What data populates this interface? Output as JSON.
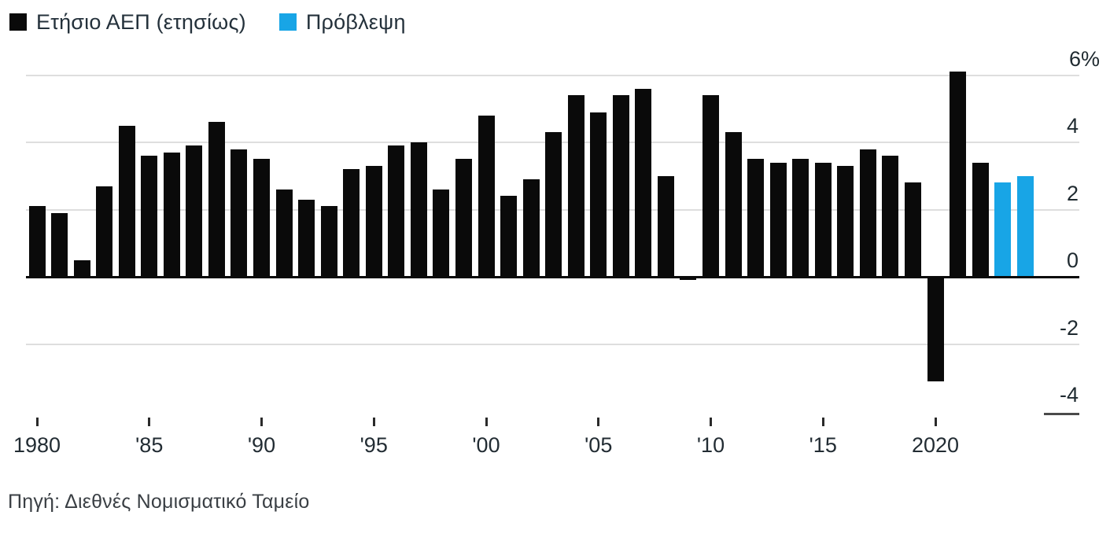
{
  "legend": {
    "series_label": "Ετήσιο ΑΕΠ (ετησίως)",
    "forecast_label": "Πρόβλεψη"
  },
  "source_note": "Πηγή: Διεθνές Νομισματικό Ταμείο",
  "colors": {
    "actual_bar": "#0a0a0a",
    "forecast_bar": "#18a5e6",
    "gridline": "#dedede",
    "zero_line": "#0a0a0a",
    "axis_stub": "#4a4a4a",
    "tick": "#2a2a2a"
  },
  "chart_data": {
    "type": "bar",
    "title": "",
    "xlabel": "",
    "ylabel": "",
    "y_unit": "%",
    "ylim": [
      -4,
      6
    ],
    "grid": "horizontal",
    "legend_position": "top-left",
    "x": [
      1980,
      1981,
      1982,
      1983,
      1984,
      1985,
      1986,
      1987,
      1988,
      1989,
      1990,
      1991,
      1992,
      1993,
      1994,
      1995,
      1996,
      1997,
      1998,
      1999,
      2000,
      2001,
      2002,
      2003,
      2004,
      2005,
      2006,
      2007,
      2008,
      2009,
      2010,
      2011,
      2012,
      2013,
      2014,
      2015,
      2016,
      2017,
      2018,
      2019,
      2020,
      2021,
      2022,
      2023,
      2024
    ],
    "values": [
      2.1,
      1.9,
      0.5,
      2.7,
      4.5,
      3.6,
      3.7,
      3.9,
      4.6,
      3.8,
      3.5,
      2.6,
      2.3,
      2.1,
      3.2,
      3.3,
      3.9,
      4.0,
      2.6,
      3.5,
      4.8,
      2.4,
      2.9,
      4.3,
      5.4,
      4.9,
      5.4,
      5.6,
      3.0,
      -0.1,
      5.4,
      4.3,
      3.5,
      3.4,
      3.5,
      3.4,
      3.3,
      3.8,
      3.6,
      2.8,
      -3.1,
      6.1,
      3.4,
      2.8,
      3.0
    ],
    "forecast_years": [
      2023,
      2024
    ],
    "series": [
      {
        "name": "Ετήσιο ΑΕΠ (ετησίως)",
        "years": "1980-2022",
        "style": "black"
      },
      {
        "name": "Πρόβλεψη",
        "years": "2023-2024",
        "style": "blue"
      }
    ],
    "yticks": [
      {
        "label": "6%",
        "value": 6
      },
      {
        "label": "4",
        "value": 4
      },
      {
        "label": "2",
        "value": 2
      },
      {
        "label": "0",
        "value": 0
      },
      {
        "label": "-2",
        "value": -2
      },
      {
        "label": "-4",
        "value": -4
      }
    ],
    "xticks": [
      {
        "label": "1980",
        "year": 1980
      },
      {
        "label": "'85",
        "year": 1985
      },
      {
        "label": "'90",
        "year": 1990
      },
      {
        "label": "'95",
        "year": 1995
      },
      {
        "label": "'00",
        "year": 2000
      },
      {
        "label": "'05",
        "year": 2005
      },
      {
        "label": "'10",
        "year": 2010
      },
      {
        "label": "'15",
        "year": 2015
      },
      {
        "label": "2020",
        "year": 2020
      }
    ]
  }
}
